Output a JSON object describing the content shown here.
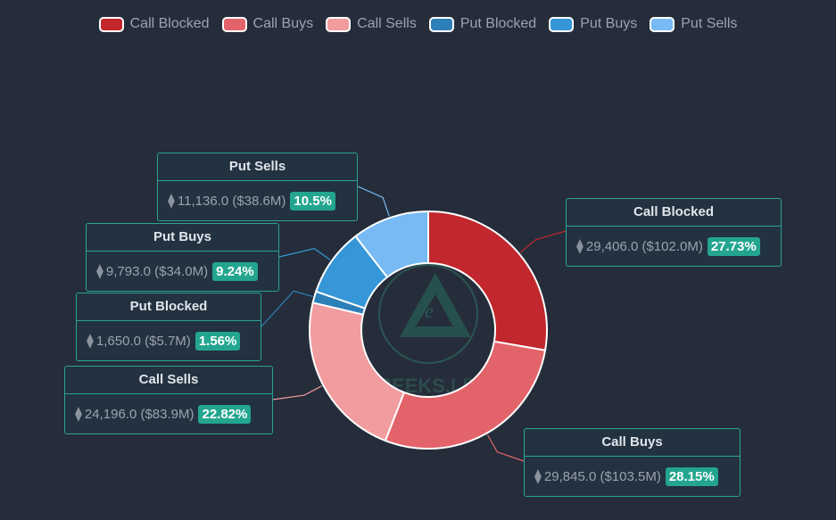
{
  "chart_data": {
    "type": "pie",
    "donut": true,
    "legend_position": "top-center",
    "watermark": "GREEKS.LIVE",
    "categories": [
      "Call Blocked",
      "Call Buys",
      "Call Sells",
      "Put Blocked",
      "Put Buys",
      "Put Sells"
    ],
    "series": [
      {
        "name": "Call Blocked",
        "value": 29406.0,
        "usd": "$102.0M",
        "percent": "27.73%",
        "color": "#c1272d"
      },
      {
        "name": "Call Buys",
        "value": 29845.0,
        "usd": "$103.5M",
        "percent": "28.15%",
        "color": "#e3636a"
      },
      {
        "name": "Call Sells",
        "value": 24196.0,
        "usd": "$83.9M",
        "percent": "22.82%",
        "color": "#f19c9e"
      },
      {
        "name": "Put Blocked",
        "value": 1650.0,
        "usd": "$5.7M",
        "percent": "1.56%",
        "color": "#2d7fb8"
      },
      {
        "name": "Put Buys",
        "value": 9793.0,
        "usd": "$34.0M",
        "percent": "9.24%",
        "color": "#3597d8"
      },
      {
        "name": "Put Sells",
        "value": 11136.0,
        "usd": "$38.6M",
        "percent": "10.5%",
        "color": "#77baf4"
      }
    ],
    "labels": [
      {
        "title": "Call Blocked",
        "amount": "29,406.0",
        "usd": "($102.0M)",
        "pct": "27.73%"
      },
      {
        "title": "Call Buys",
        "amount": "29,845.0",
        "usd": "($103.5M)",
        "pct": "28.15%"
      },
      {
        "title": "Call Sells",
        "amount": "24,196.0",
        "usd": "($83.9M)",
        "pct": "22.82%"
      },
      {
        "title": "Put Blocked",
        "amount": "1,650.0",
        "usd": "($5.7M)",
        "pct": "1.56%"
      },
      {
        "title": "Put Buys",
        "amount": "9,793.0",
        "usd": "($34.0M)",
        "pct": "9.24%"
      },
      {
        "title": "Put Sells",
        "amount": "11,136.0",
        "usd": "($38.6M)",
        "pct": "10.5%"
      }
    ]
  },
  "icons": {
    "eth": "eth-icon"
  },
  "eth_glyph": "⧫"
}
